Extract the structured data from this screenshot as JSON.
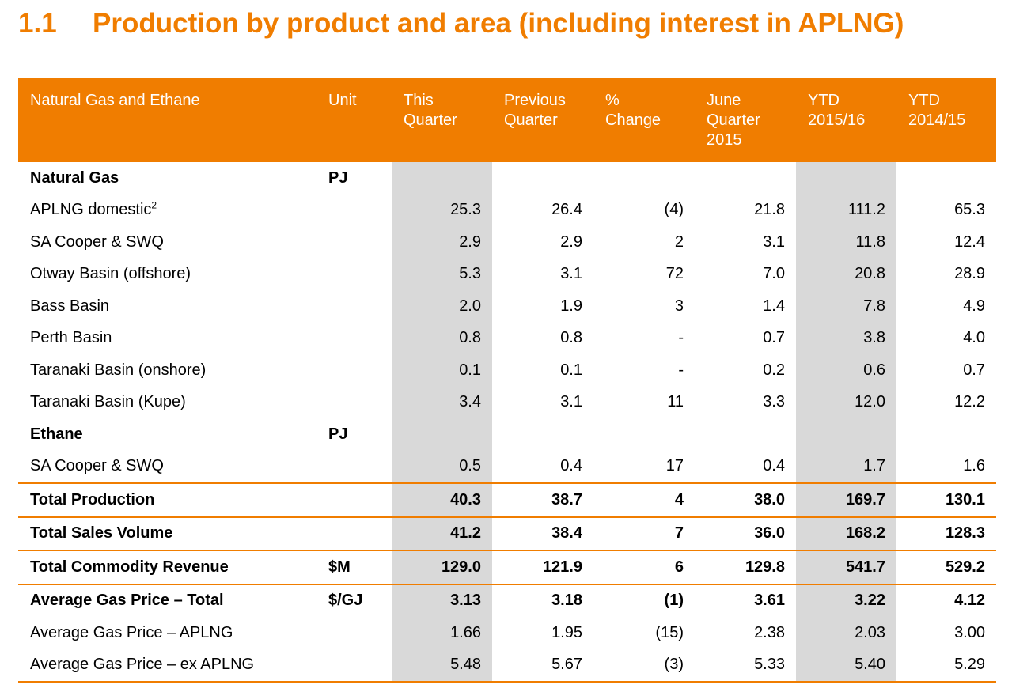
{
  "heading": {
    "number": "1.1",
    "title": "Production by product and area (including interest in APLNG)"
  },
  "colors": {
    "accent": "#f07d00",
    "shade": "#d9d9d9"
  },
  "table": {
    "headers": [
      "Natural Gas and Ethane",
      "Unit",
      "This\nQuarter",
      "Previous\nQuarter",
      "%\nChange",
      "June\nQuarter\n2015",
      "YTD\n2015/16",
      "YTD\n2014/15"
    ],
    "rows": [
      {
        "label": "Natural Gas",
        "unit": "PJ",
        "values": [
          "",
          "",
          "",
          "",
          "",
          ""
        ],
        "bold": true
      },
      {
        "label": "APLNG domestic",
        "sup": "2",
        "unit": "",
        "values": [
          "25.3",
          "26.4",
          "(4)",
          "21.8",
          "111.2",
          "65.3"
        ]
      },
      {
        "label": "SA Cooper & SWQ",
        "unit": "",
        "values": [
          "2.9",
          "2.9",
          "2",
          "3.1",
          "11.8",
          "12.4"
        ]
      },
      {
        "label": "Otway Basin (offshore)",
        "unit": "",
        "values": [
          "5.3",
          "3.1",
          "72",
          "7.0",
          "20.8",
          "28.9"
        ]
      },
      {
        "label": "Bass Basin",
        "unit": "",
        "values": [
          "2.0",
          "1.9",
          "3",
          "1.4",
          "7.8",
          "4.9"
        ]
      },
      {
        "label": "Perth Basin",
        "unit": "",
        "values": [
          "0.8",
          "0.8",
          "-",
          "0.7",
          "3.8",
          "4.0"
        ]
      },
      {
        "label": "Taranaki Basin (onshore)",
        "unit": "",
        "values": [
          "0.1",
          "0.1",
          "-",
          "0.2",
          "0.6",
          "0.7"
        ]
      },
      {
        "label": "Taranaki Basin (Kupe)",
        "unit": "",
        "values": [
          "3.4",
          "3.1",
          "11",
          "3.3",
          "12.0",
          "12.2"
        ]
      },
      {
        "label": "Ethane",
        "unit": "PJ",
        "values": [
          "",
          "",
          "",
          "",
          "",
          ""
        ],
        "bold": true
      },
      {
        "label": "SA Cooper & SWQ",
        "unit": "",
        "values": [
          "0.5",
          "0.4",
          "17",
          "0.4",
          "1.7",
          "1.6"
        ]
      },
      {
        "label": "Total Production",
        "unit": "",
        "values": [
          "40.3",
          "38.7",
          "4",
          "38.0",
          "169.7",
          "130.1"
        ],
        "bold": true,
        "sep": true
      },
      {
        "label": "Total Sales Volume",
        "unit": "",
        "values": [
          "41.2",
          "38.4",
          "7",
          "36.0",
          "168.2",
          "128.3"
        ],
        "bold": true,
        "sep": true
      },
      {
        "label": "Total Commodity Revenue",
        "unit": "$M",
        "values": [
          "129.0",
          "121.9",
          "6",
          "129.8",
          "541.7",
          "529.2"
        ],
        "bold": true,
        "sep": true
      },
      {
        "label": "Average Gas Price – Total",
        "unit": "$/GJ",
        "values": [
          "3.13",
          "3.18",
          "(1)",
          "3.61",
          "3.22",
          "4.12"
        ],
        "bold": true,
        "sep": true
      },
      {
        "label": "Average Gas Price – APLNG",
        "unit": "",
        "values": [
          "1.66",
          "1.95",
          "(15)",
          "2.38",
          "2.03",
          "3.00"
        ]
      },
      {
        "label": "Average Gas Price – ex APLNG",
        "unit": "",
        "values": [
          "5.48",
          "5.67",
          "(3)",
          "5.33",
          "5.40",
          "5.29"
        ],
        "last": true
      }
    ]
  }
}
